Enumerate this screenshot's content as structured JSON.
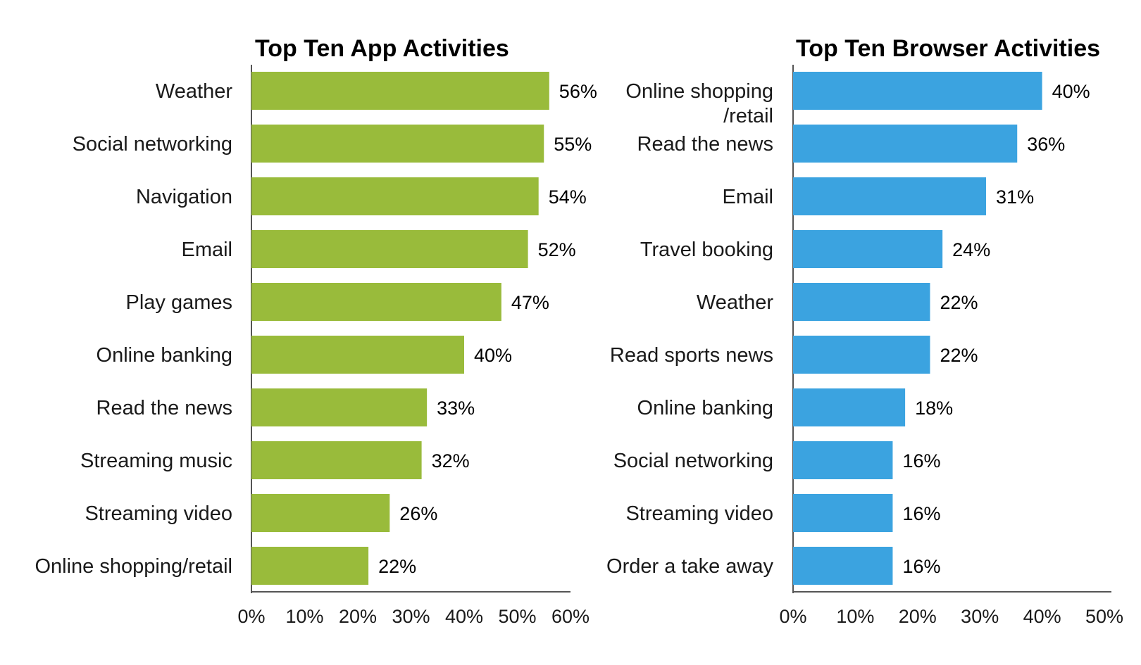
{
  "chart_data": [
    {
      "type": "bar",
      "orientation": "horizontal",
      "title": "Top Ten App Activities",
      "xlabel": "",
      "ylabel": "",
      "xlim": [
        0,
        60
      ],
      "ticks": [
        "0%",
        "10%",
        "20%",
        "30%",
        "40%",
        "50%",
        "60%"
      ],
      "tick_values": [
        0,
        10,
        20,
        30,
        40,
        50,
        60
      ],
      "categories": [
        [
          "Weather"
        ],
        [
          "Social networking"
        ],
        [
          "Navigation"
        ],
        [
          "Email"
        ],
        [
          "Play games"
        ],
        [
          "Online banking"
        ],
        [
          "Read the news"
        ],
        [
          "Streaming music"
        ],
        [
          "Streaming video"
        ],
        [
          "Online shopping/retail"
        ]
      ],
      "values": [
        56,
        55,
        54,
        52,
        47,
        40,
        33,
        32,
        26,
        22
      ],
      "value_labels": [
        "56%",
        "55%",
        "54%",
        "52%",
        "47%",
        "40%",
        "33%",
        "32%",
        "26%",
        "22%"
      ],
      "color": "#99bb3b",
      "grid": false,
      "legend": "none"
    },
    {
      "type": "bar",
      "orientation": "horizontal",
      "title": "Top Ten Browser Activities",
      "xlabel": "",
      "ylabel": "",
      "xlim": [
        0,
        50
      ],
      "ticks": [
        "0%",
        "10%",
        "20%",
        "30%",
        "40%",
        "50%"
      ],
      "tick_values": [
        0,
        10,
        20,
        30,
        40,
        50
      ],
      "categories": [
        [
          "Online shopping",
          "/retail"
        ],
        [
          "Read the news"
        ],
        [
          "Email"
        ],
        [
          "Travel booking"
        ],
        [
          "Weather"
        ],
        [
          "Read sports news"
        ],
        [
          "Online banking"
        ],
        [
          "Social networking"
        ],
        [
          "Streaming video"
        ],
        [
          "Order a take away"
        ]
      ],
      "values": [
        40,
        36,
        31,
        24,
        22,
        22,
        18,
        16,
        16,
        16
      ],
      "value_labels": [
        "40%",
        "36%",
        "31%",
        "24%",
        "22%",
        "22%",
        "18%",
        "16%",
        "16%",
        "16%"
      ],
      "color": "#3ba3e0",
      "grid": false,
      "legend": "none"
    }
  ]
}
